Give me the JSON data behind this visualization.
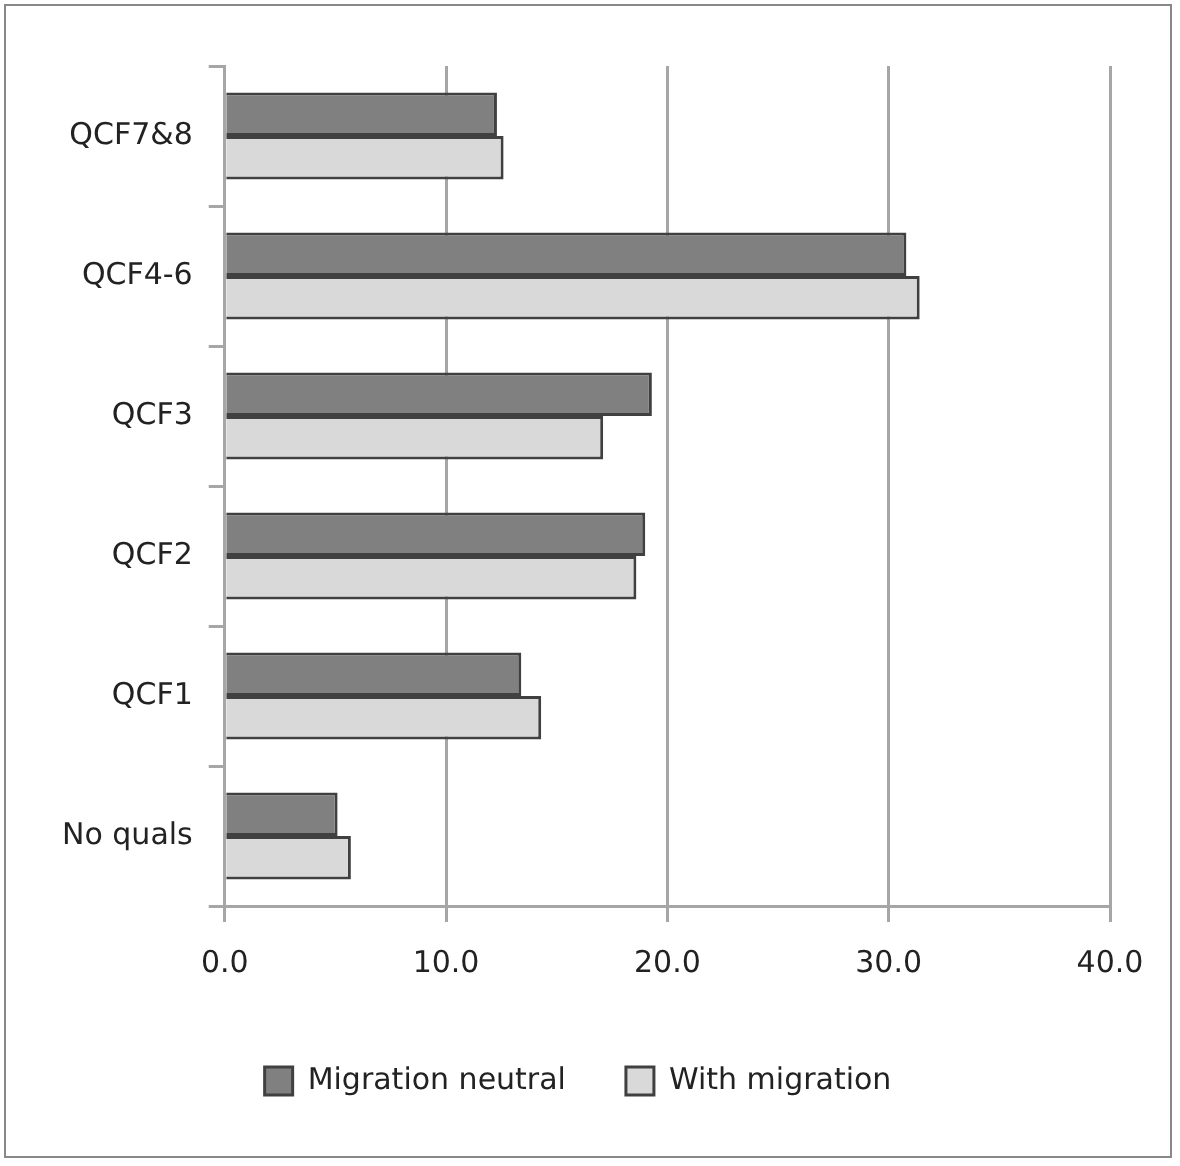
{
  "chart_data": {
    "type": "bar",
    "orientation": "horizontal",
    "categories": [
      "QCF7&8",
      "QCF4-6",
      "QCF3",
      "QCF2",
      "QCF1",
      "No quals"
    ],
    "series": [
      {
        "name": "Migration neutral",
        "color": "#808080",
        "values": [
          12.3,
          30.8,
          19.3,
          19.0,
          13.4,
          5.1
        ]
      },
      {
        "name": "With migration",
        "color": "#d9d9d9",
        "values": [
          12.6,
          31.4,
          17.1,
          18.6,
          14.3,
          5.7
        ]
      }
    ],
    "xlim": [
      0,
      40
    ],
    "xticks": [
      {
        "value": 0,
        "label": "0.0"
      },
      {
        "value": 10,
        "label": "10.0"
      },
      {
        "value": 20,
        "label": "20.0"
      },
      {
        "value": 30,
        "label": "30.0"
      },
      {
        "value": 40,
        "label": "40.0"
      }
    ],
    "grid": "x",
    "legend": "bottom"
  }
}
